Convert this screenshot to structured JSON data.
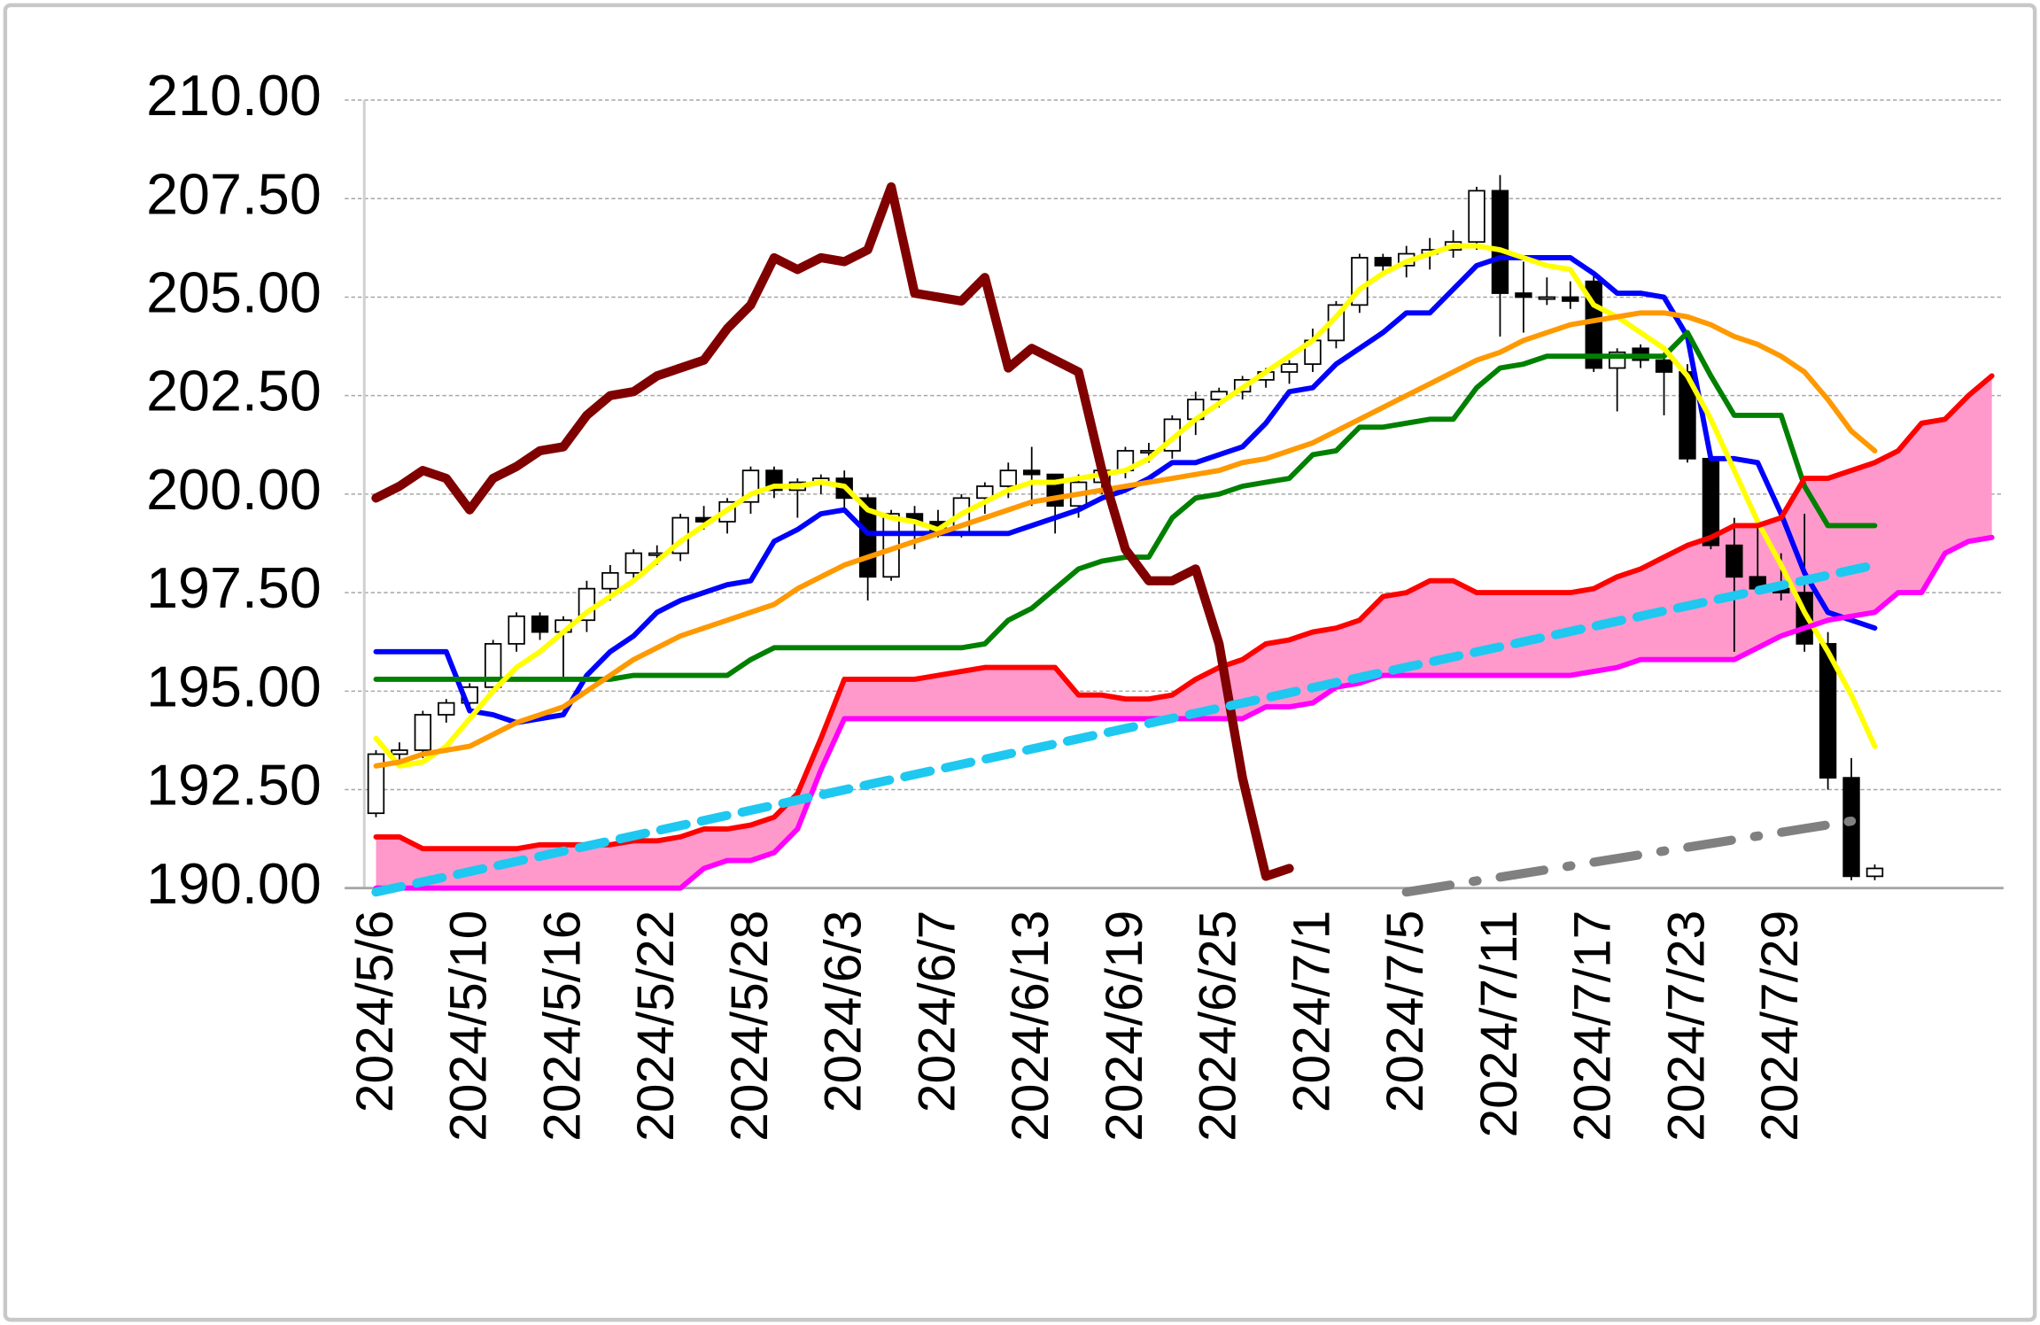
{
  "chart_data": {
    "type": "candlestick",
    "categories": [
      "2024/5/6",
      null,
      null,
      null,
      "2024/5/10",
      null,
      null,
      null,
      "2024/5/16",
      null,
      null,
      null,
      "2024/5/22",
      null,
      null,
      null,
      "2024/5/28",
      null,
      null,
      null,
      "2024/6/3",
      null,
      null,
      null,
      "2024/6/7",
      null,
      null,
      null,
      "2024/6/13",
      null,
      null,
      null,
      "2024/6/19",
      null,
      null,
      null,
      "2024/6/25",
      null,
      null,
      null,
      "2024/7/1",
      null,
      null,
      null,
      "2024/7/5",
      null,
      null,
      null,
      "2024/7/11",
      null,
      null,
      null,
      "2024/7/17",
      null,
      null,
      null,
      "2024/7/23",
      null,
      null,
      null,
      "2024/7/29",
      null,
      null,
      null,
      null,
      null,
      null,
      null,
      null,
      null
    ],
    "ylim": [
      190,
      210
    ],
    "yticks": [
      {
        "value": 190,
        "label": "190.00"
      },
      {
        "value": 192.5,
        "label": "192.50"
      },
      {
        "value": 195,
        "label": "195.00"
      },
      {
        "value": 197.5,
        "label": "197.50"
      },
      {
        "value": 200,
        "label": "200.00"
      },
      {
        "value": 202.5,
        "label": "202.50"
      },
      {
        "value": 205,
        "label": "205.00"
      },
      {
        "value": 207.5,
        "label": "207.50"
      },
      {
        "value": 210,
        "label": "210.00"
      }
    ],
    "grid": true,
    "up_color": "#ffffff",
    "down_color": "#000000",
    "open": [
      191.9,
      193.4,
      193.5,
      194.4,
      194.7,
      195.1,
      196.2,
      196.9,
      196.5,
      196.8,
      197.6,
      198.0,
      198.5,
      198.5,
      199.4,
      199.3,
      199.8,
      200.6,
      200.1,
      200.3,
      200.4,
      199.9,
      197.9,
      199.5,
      199.3,
      199.0,
      199.9,
      200.2,
      200.6,
      200.5,
      199.7,
      200.3,
      200.6,
      201.1,
      201.1,
      201.9,
      202.4,
      202.6,
      202.9,
      203.1,
      203.3,
      203.9,
      204.8,
      206.0,
      205.8,
      206.1,
      206.2,
      206.4,
      207.7,
      205.1,
      205.0,
      205.0,
      205.4,
      203.2,
      203.7,
      203.4,
      203.1,
      200.9,
      198.7,
      197.9,
      197.6,
      197.5,
      196.2,
      192.8,
      190.3,
      null,
      null,
      null,
      null,
      null
    ],
    "high": [
      193.5,
      193.7,
      194.5,
      194.8,
      195.2,
      196.3,
      197.0,
      197.0,
      196.9,
      197.8,
      198.2,
      198.6,
      198.7,
      199.5,
      199.7,
      199.9,
      200.7,
      200.7,
      200.4,
      200.5,
      200.6,
      200.0,
      199.6,
      199.7,
      199.6,
      200.0,
      200.3,
      200.8,
      201.2,
      200.5,
      200.5,
      200.8,
      201.2,
      201.3,
      202.0,
      202.6,
      202.7,
      203.0,
      203.2,
      203.4,
      204.2,
      204.9,
      206.1,
      206.1,
      206.3,
      206.5,
      206.7,
      207.8,
      208.1,
      205.9,
      205.5,
      205.4,
      205.6,
      203.7,
      203.8,
      203.6,
      203.3,
      201.0,
      199.4,
      199.2,
      198.5,
      199.5,
      196.5,
      193.3,
      190.6,
      null,
      null,
      null,
      null,
      null
    ],
    "low": [
      191.8,
      193.2,
      193.3,
      194.2,
      194.5,
      195.0,
      196.0,
      196.3,
      195.3,
      196.5,
      197.3,
      197.8,
      198.2,
      198.3,
      199.1,
      199.0,
      199.5,
      199.9,
      199.4,
      200.0,
      199.6,
      197.3,
      197.8,
      198.6,
      198.9,
      198.9,
      199.5,
      199.9,
      199.7,
      199.0,
      199.4,
      200.0,
      200.4,
      200.8,
      200.9,
      201.5,
      202.2,
      202.4,
      202.7,
      202.8,
      203.1,
      203.7,
      204.6,
      205.6,
      205.5,
      205.7,
      206.0,
      206.2,
      204.0,
      204.1,
      204.8,
      204.7,
      203.1,
      202.1,
      203.2,
      202.0,
      200.8,
      198.6,
      196.0,
      197.5,
      197.3,
      196.0,
      192.5,
      190.2,
      190.2,
      null,
      null,
      null,
      null,
      null
    ],
    "close": [
      193.4,
      193.5,
      194.4,
      194.7,
      195.1,
      196.2,
      196.9,
      196.5,
      196.8,
      197.6,
      198.0,
      198.5,
      198.5,
      199.4,
      199.3,
      199.8,
      200.6,
      200.1,
      200.3,
      200.4,
      199.9,
      197.9,
      199.5,
      199.3,
      199.0,
      199.9,
      200.2,
      200.6,
      200.5,
      199.7,
      200.3,
      200.6,
      201.1,
      201.1,
      201.9,
      202.4,
      202.6,
      202.9,
      203.1,
      203.3,
      203.9,
      204.8,
      206.0,
      205.8,
      206.1,
      206.2,
      206.4,
      207.7,
      205.1,
      205.0,
      205.0,
      204.9,
      203.2,
      203.6,
      203.4,
      203.1,
      200.9,
      198.7,
      197.9,
      197.6,
      197.5,
      196.2,
      192.8,
      190.3,
      190.5,
      null,
      null,
      null,
      null,
      null
    ],
    "cloud_color": "#ff99cc",
    "cloud_between": [
      4,
      5
    ],
    "series": [
      {
        "color": "#0000ff",
        "width": 4,
        "values": [
          196.0,
          196.0,
          196.0,
          196.0,
          194.5,
          194.4,
          194.2,
          194.3,
          194.4,
          195.4,
          196.0,
          196.4,
          197.0,
          197.3,
          197.5,
          197.7,
          197.8,
          198.8,
          199.1,
          199.5,
          199.6,
          199.0,
          199.0,
          199.0,
          199.0,
          199.0,
          199.0,
          199.0,
          199.2,
          199.4,
          199.6,
          199.9,
          200.1,
          200.4,
          200.8,
          200.8,
          201.0,
          201.2,
          201.8,
          202.6,
          202.7,
          203.3,
          203.7,
          204.1,
          204.6,
          204.6,
          205.2,
          205.8,
          206.0,
          206.0,
          206.0,
          206.0,
          205.6,
          205.1,
          205.1,
          205.0,
          204.0,
          200.9,
          200.9,
          200.8,
          199.5,
          198.0,
          197.0,
          196.8,
          196.6,
          null,
          null,
          null,
          null,
          null
        ]
      },
      {
        "color": "#008000",
        "width": 4,
        "values": [
          195.3,
          195.3,
          195.3,
          195.3,
          195.3,
          195.3,
          195.3,
          195.3,
          195.3,
          195.3,
          195.3,
          195.4,
          195.4,
          195.4,
          195.4,
          195.4,
          195.8,
          196.1,
          196.1,
          196.1,
          196.1,
          196.1,
          196.1,
          196.1,
          196.1,
          196.1,
          196.2,
          196.8,
          197.1,
          197.6,
          198.1,
          198.3,
          198.4,
          198.4,
          199.4,
          199.9,
          200.0,
          200.2,
          200.3,
          200.4,
          201.0,
          201.1,
          201.7,
          201.7,
          201.8,
          201.9,
          201.9,
          202.7,
          203.2,
          203.3,
          203.5,
          203.5,
          203.5,
          203.5,
          203.5,
          203.5,
          204.1,
          203.0,
          202.0,
          202.0,
          202.0,
          200.2,
          199.2,
          199.2,
          199.2,
          null,
          null,
          null,
          null,
          null
        ]
      },
      {
        "color": "#ffff00",
        "width": 4,
        "values": [
          193.8,
          193.1,
          193.2,
          193.6,
          194.3,
          195.0,
          195.6,
          196.0,
          196.5,
          197.0,
          197.4,
          197.8,
          198.3,
          198.8,
          199.2,
          199.6,
          200.0,
          200.2,
          200.2,
          200.3,
          200.2,
          199.6,
          199.4,
          199.3,
          199.1,
          199.5,
          199.8,
          200.1,
          200.3,
          200.3,
          200.4,
          200.5,
          200.6,
          200.9,
          201.4,
          201.9,
          202.3,
          202.7,
          203.1,
          203.5,
          203.9,
          204.5,
          205.2,
          205.6,
          205.9,
          206.1,
          206.3,
          206.3,
          206.2,
          206.0,
          205.8,
          205.7,
          204.8,
          204.5,
          204.1,
          203.7,
          203.0,
          201.9,
          200.6,
          199.3,
          198.2,
          197.0,
          196.0,
          194.9,
          193.6,
          null,
          null,
          null,
          null,
          null
        ]
      },
      {
        "color": "#ff9900",
        "width": 4,
        "values": [
          193.1,
          193.2,
          193.4,
          193.5,
          193.6,
          193.9,
          194.2,
          194.4,
          194.6,
          195.0,
          195.4,
          195.8,
          196.1,
          196.4,
          196.6,
          196.8,
          197.0,
          197.2,
          197.6,
          197.9,
          198.2,
          198.4,
          198.6,
          198.8,
          199.0,
          199.2,
          199.4,
          199.6,
          199.8,
          199.9,
          200.0,
          200.1,
          200.2,
          200.3,
          200.4,
          200.5,
          200.6,
          200.8,
          200.9,
          201.1,
          201.3,
          201.6,
          201.9,
          202.2,
          202.5,
          202.8,
          203.1,
          203.4,
          203.6,
          203.9,
          204.1,
          204.3,
          204.4,
          204.5,
          204.6,
          204.6,
          204.5,
          204.3,
          204.0,
          203.8,
          203.5,
          203.1,
          202.4,
          201.6,
          201.1,
          null,
          null,
          null,
          null,
          null
        ]
      },
      {
        "color": "#ff0000",
        "width": 4,
        "values": [
          191.3,
          191.3,
          191.0,
          191.0,
          191.0,
          191.0,
          191.0,
          191.1,
          191.1,
          191.1,
          191.1,
          191.2,
          191.2,
          191.3,
          191.5,
          191.5,
          191.6,
          191.8,
          192.4,
          193.8,
          195.3,
          195.3,
          195.3,
          195.3,
          195.4,
          195.5,
          195.6,
          195.6,
          195.6,
          195.6,
          194.9,
          194.9,
          194.8,
          194.8,
          194.9,
          195.3,
          195.6,
          195.8,
          196.2,
          196.3,
          196.5,
          196.6,
          196.8,
          197.4,
          197.5,
          197.8,
          197.8,
          197.5,
          197.5,
          197.5,
          197.5,
          197.5,
          197.6,
          197.9,
          198.1,
          198.4,
          198.7,
          198.9,
          199.2,
          199.2,
          199.4,
          200.4,
          200.4,
          200.6,
          200.8,
          201.1,
          201.8,
          201.9,
          202.5,
          203.0
        ]
      },
      {
        "color": "#ff00ff",
        "width": 4,
        "values": [
          190.0,
          190.0,
          190.0,
          190.0,
          190.0,
          190.0,
          190.0,
          190.0,
          190.0,
          190.0,
          190.0,
          190.0,
          190.0,
          190.0,
          190.5,
          190.7,
          190.7,
          190.9,
          191.5,
          193.0,
          194.3,
          194.3,
          194.3,
          194.3,
          194.3,
          194.3,
          194.3,
          194.3,
          194.3,
          194.3,
          194.3,
          194.3,
          194.3,
          194.3,
          194.3,
          194.3,
          194.3,
          194.3,
          194.6,
          194.6,
          194.7,
          195.1,
          195.2,
          195.4,
          195.4,
          195.4,
          195.4,
          195.4,
          195.4,
          195.4,
          195.4,
          195.4,
          195.5,
          195.6,
          195.8,
          195.8,
          195.8,
          195.8,
          195.8,
          196.1,
          196.4,
          196.6,
          196.8,
          196.9,
          197.0,
          197.5,
          197.5,
          198.5,
          198.8,
          198.9
        ]
      },
      {
        "color": "#800000",
        "width": 7,
        "values": [
          199.9,
          200.2,
          200.6,
          200.4,
          199.6,
          200.4,
          200.7,
          201.1,
          201.2,
          202.0,
          202.5,
          202.6,
          203.0,
          203.2,
          203.4,
          204.2,
          204.8,
          206.0,
          205.7,
          206.0,
          205.9,
          206.2,
          207.8,
          205.1,
          205.0,
          204.9,
          205.5,
          203.2,
          203.7,
          203.4,
          203.1,
          200.6,
          198.6,
          197.8,
          197.8,
          198.1,
          196.2,
          192.8,
          190.3,
          190.5,
          null,
          null,
          null,
          null,
          null,
          null,
          null,
          null,
          null,
          null,
          null,
          null,
          null,
          null,
          null,
          null,
          null,
          null,
          null,
          null,
          null,
          null,
          null,
          null,
          null,
          null,
          null,
          null,
          null,
          null
        ]
      }
    ],
    "trendlines": [
      {
        "color": "#1ec8f0",
        "dash": "dash",
        "x": [
          0,
          64
        ],
        "y": [
          189.9,
          198.2
        ]
      },
      {
        "color": "#808080",
        "dash": "dashdot",
        "x": [
          44,
          63
        ],
        "y": [
          189.9,
          191.7
        ]
      }
    ]
  }
}
